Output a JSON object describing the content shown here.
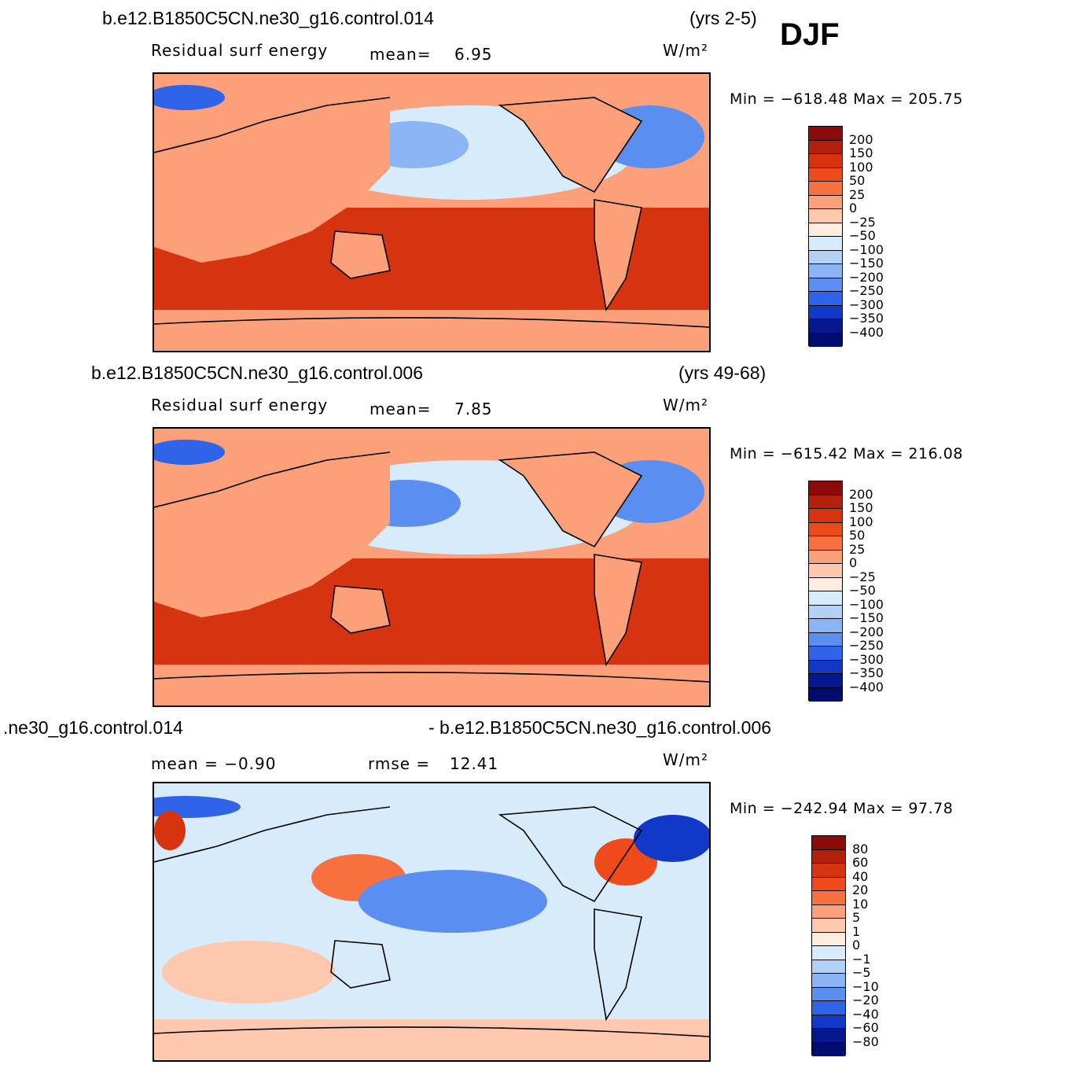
{
  "header": {
    "season": "DJF"
  },
  "panels": [
    {
      "id": "p1",
      "title_left": "b.e12.B1850C5CN.ne30_g16.control.014",
      "title_right": "(yrs 2-5)",
      "sub_left": "Residual  surf  energy",
      "sub_mid_label": "mean=",
      "sub_mid_value": "6.95",
      "units": "W/m²",
      "minmax": "Min  =  −618.48  Max  =  205.75",
      "colorbar_labels": [
        "200",
        "150",
        "100",
        "50",
        "25",
        "0",
        "−25",
        "−50",
        "−100",
        "−150",
        "−200",
        "−250",
        "−300",
        "−350",
        "−400"
      ],
      "colorbar_colors": [
        "#8b0a0a",
        "#b3200c",
        "#d63410",
        "#ef4a1c",
        "#f8703e",
        "#fca07a",
        "#fdc8ae",
        "#feece0",
        "#d8ebfb",
        "#b3d0f7",
        "#8bb4f4",
        "#5a8ef0",
        "#2f63e8",
        "#1238c8",
        "#06188f",
        "#000d6e"
      ]
    },
    {
      "id": "p2",
      "title_left": "b.e12.B1850C5CN.ne30_g16.control.006",
      "title_right": "(yrs 49-68)",
      "sub_left": "Residual  surf  energy",
      "sub_mid_label": "mean=",
      "sub_mid_value": "7.85",
      "units": "W/m²",
      "minmax": "Min  =  −615.42  Max  =  216.08",
      "colorbar_labels": [
        "200",
        "150",
        "100",
        "50",
        "25",
        "0",
        "−25",
        "−50",
        "−100",
        "−150",
        "−200",
        "−250",
        "−300",
        "−350",
        "−400"
      ],
      "colorbar_colors": [
        "#8b0a0a",
        "#b3200c",
        "#d63410",
        "#ef4a1c",
        "#f8703e",
        "#fca07a",
        "#fdc8ae",
        "#feece0",
        "#d8ebfb",
        "#b3d0f7",
        "#8bb4f4",
        "#5a8ef0",
        "#2f63e8",
        "#1238c8",
        "#06188f",
        "#000d6e"
      ]
    },
    {
      "id": "p3",
      "title_left": ".ne30_g16.control.014",
      "title_right": "- b.e12.B1850C5CN.ne30_g16.control.006",
      "sub_left": "mean  =    −0.90",
      "sub_mid_label": "rmse  =",
      "sub_mid_value": "12.41",
      "units": "W/m²",
      "minmax": "Min  =  −242.94  Max  =    97.78",
      "colorbar_labels": [
        "80",
        "60",
        "40",
        "20",
        "10",
        "5",
        "1",
        "0",
        "−1",
        "−5",
        "−10",
        "−20",
        "−40",
        "−60",
        "−80"
      ],
      "colorbar_colors": [
        "#8b0a0a",
        "#b3200c",
        "#d63410",
        "#ef4a1c",
        "#f8703e",
        "#fca07a",
        "#fdc8ae",
        "#feece0",
        "#d8ebfb",
        "#b3d0f7",
        "#8bb4f4",
        "#5a8ef0",
        "#2f63e8",
        "#1238c8",
        "#06188f",
        "#000d6e"
      ]
    }
  ]
}
